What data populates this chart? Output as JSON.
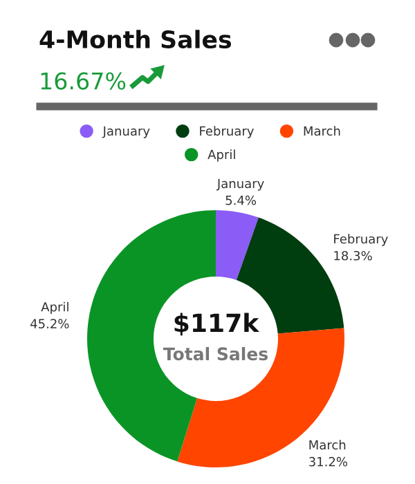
{
  "chart_data": {
    "type": "donut",
    "title": "4-Month Sales",
    "subtitle": "16.67%",
    "categories": [
      "January",
      "February",
      "March",
      "April"
    ],
    "values": [
      5.4,
      18.3,
      31.2,
      45.2
    ],
    "colors": [
      "#8b5cf6",
      "#003d0f",
      "#ff4500",
      "#0b9426"
    ],
    "value_labels": [
      "5.4%",
      "18.3%",
      "31.2%",
      "45.2%"
    ],
    "annotations": [
      "$117k",
      "Total Sales"
    ],
    "legend": "top"
  }
}
